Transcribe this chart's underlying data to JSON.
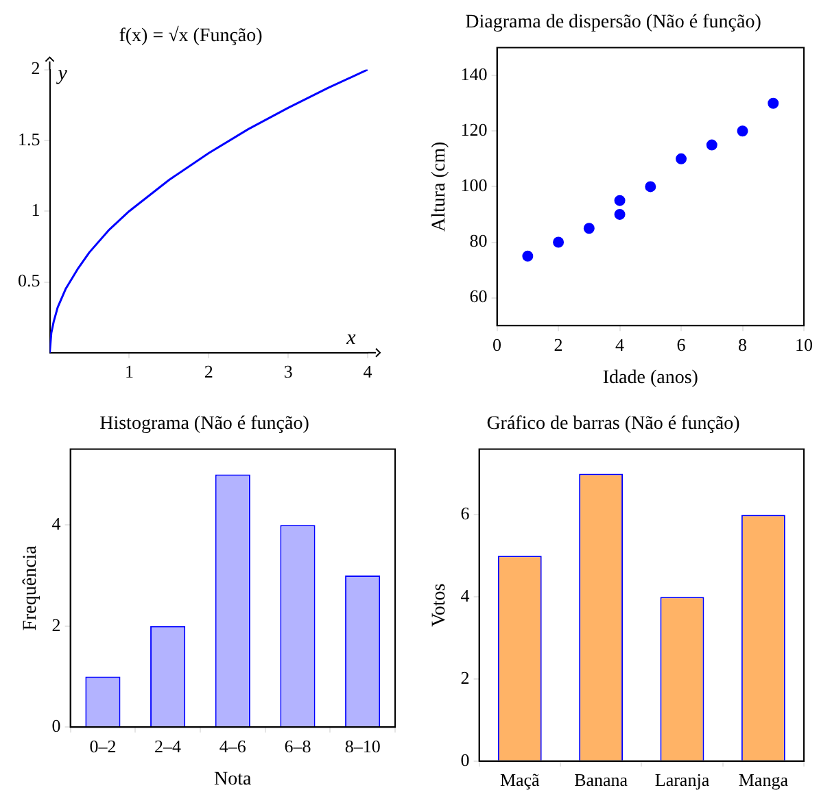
{
  "chart_data": [
    {
      "type": "line",
      "title": "f(x) = √x (Função)",
      "xlabel": "x",
      "ylabel": "y",
      "x": [
        0,
        0.02,
        0.05,
        0.1,
        0.2,
        0.35,
        0.5,
        0.75,
        1,
        1.5,
        2,
        2.5,
        3,
        3.5,
        4
      ],
      "series": [
        {
          "color": "#0000ff",
          "values": [
            0,
            0.14,
            0.22,
            0.32,
            0.45,
            0.59,
            0.71,
            0.87,
            1,
            1.22,
            1.41,
            1.58,
            1.73,
            1.87,
            2
          ]
        }
      ],
      "xlim": [
        0,
        4
      ],
      "xticks": [
        1,
        2,
        3,
        4
      ],
      "ylim": [
        0,
        2
      ],
      "yticks": [
        0.5,
        1,
        1.5,
        2
      ],
      "grid": false,
      "legend": false,
      "marker": "none",
      "line_style": "solid"
    },
    {
      "type": "scatter",
      "title": "Diagrama de dispersão (Não é função)",
      "xlabel": "Idade (anos)",
      "ylabel": "Altura (cm)",
      "x": [
        1,
        2,
        3,
        4,
        4,
        5,
        6,
        7,
        8,
        9
      ],
      "series": [
        {
          "color": "#0000ff",
          "values": [
            75,
            80,
            85,
            90,
            95,
            100,
            110,
            115,
            120,
            130
          ]
        }
      ],
      "xlim": [
        0,
        10
      ],
      "xticks": [
        0,
        2,
        4,
        6,
        8,
        10
      ],
      "ylim": [
        50,
        150
      ],
      "yticks": [
        60,
        80,
        100,
        120,
        140
      ],
      "grid": false,
      "legend": false,
      "marker": "circle"
    },
    {
      "type": "bar",
      "title": "Histograma (Não é função)",
      "xlabel": "Nota",
      "ylabel": "Frequência",
      "categories": [
        "0–2",
        "2–4",
        "4–6",
        "6–8",
        "8–10"
      ],
      "series": [
        {
          "color": "#b3b3ff",
          "values": [
            1,
            2,
            5,
            4,
            3
          ]
        }
      ],
      "ylim": [
        0,
        5.5
      ],
      "yticks": [
        0,
        2,
        4
      ],
      "grid": false,
      "legend": false
    },
    {
      "type": "bar",
      "title": "Gráfico de barras (Não é função)",
      "ylabel": "Votos",
      "categories": [
        "Maçã",
        "Banana",
        "Laranja",
        "Manga"
      ],
      "series": [
        {
          "color": "#ffb366",
          "values": [
            5,
            7,
            4,
            6
          ]
        }
      ],
      "ylim": [
        0,
        7.6
      ],
      "yticks": [
        0,
        2,
        4,
        6
      ],
      "grid": false,
      "legend": false
    }
  ]
}
